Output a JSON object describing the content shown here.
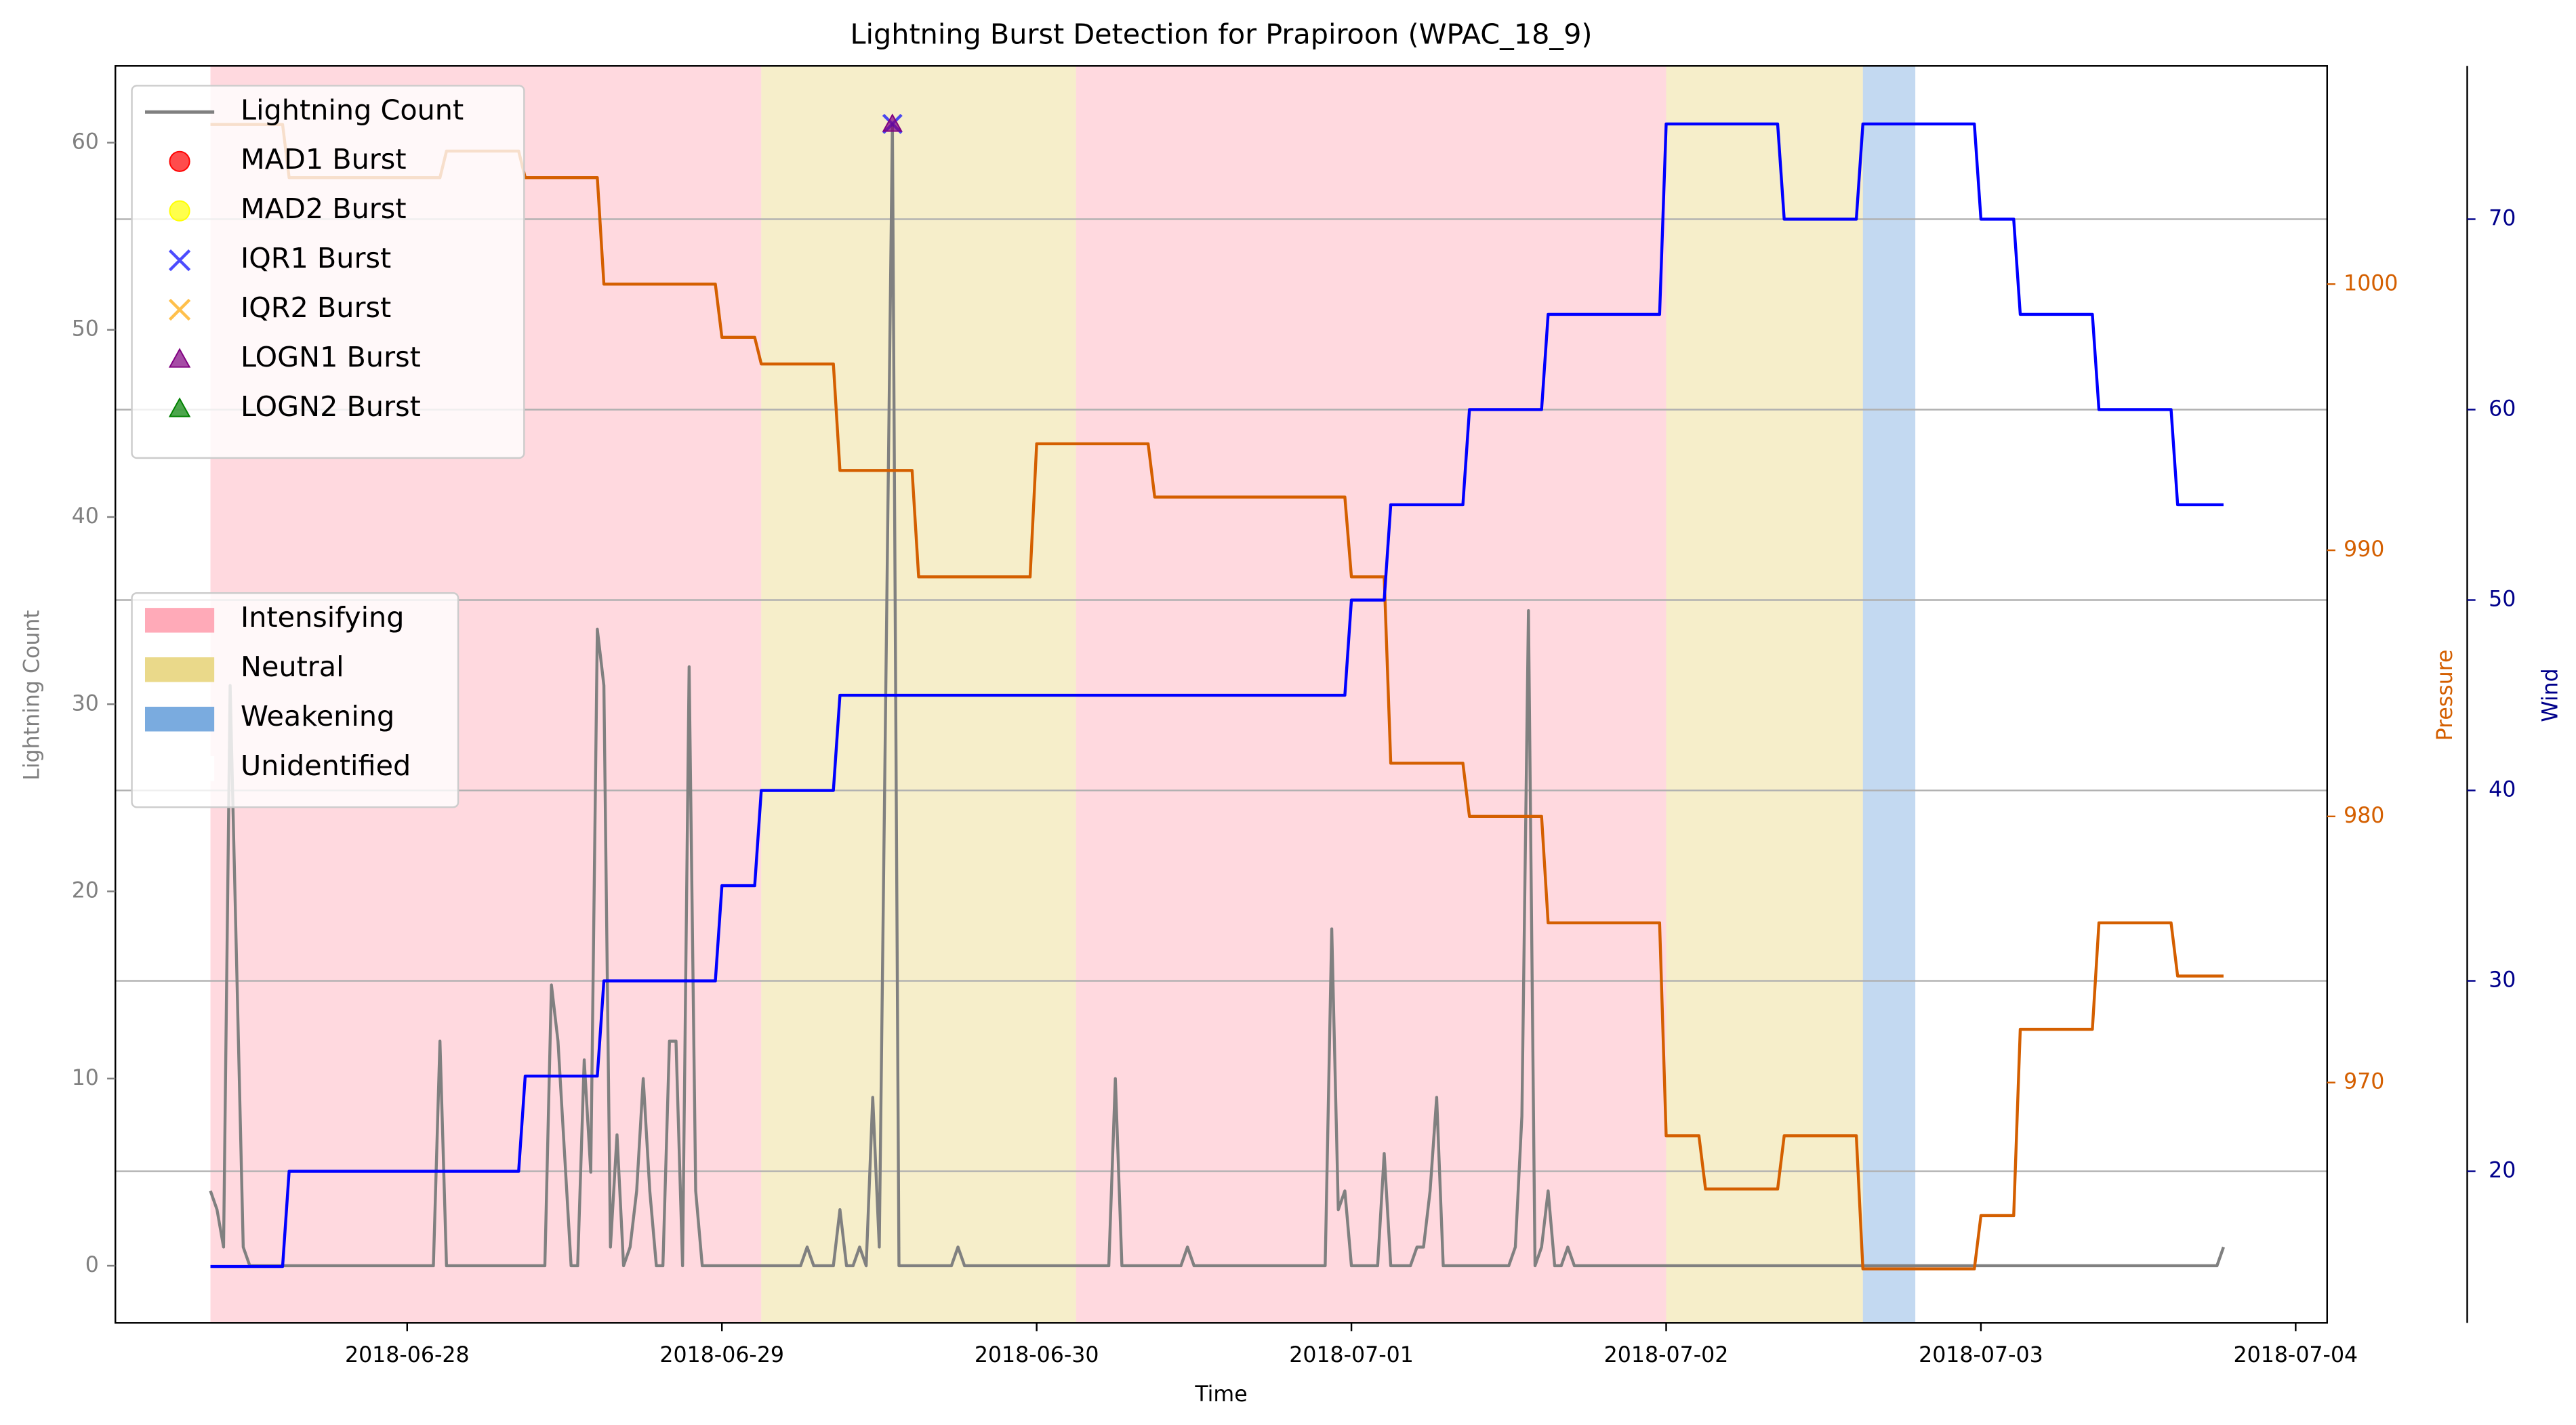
{
  "chart_data": {
    "type": "line",
    "title": "Lightning Burst Detection for Prapiroon (WPAC_18_9)",
    "xlabel": "Time",
    "ylabel": "Lightning Count",
    "y2label": "Pressure",
    "y3label": "Wind",
    "xlim": [
      "2018-06-27 01:45",
      "2018-07-04 02:24"
    ],
    "xticks": [
      "2018-06-28",
      "2018-06-29",
      "2018-06-30",
      "2018-07-01",
      "2018-07-02",
      "2018-07-03",
      "2018-07-04"
    ],
    "ylim": [
      -3.05,
      64.1
    ],
    "yticks": [
      0,
      10,
      20,
      30,
      40,
      50,
      60
    ],
    "y2lim": [
      960.97,
      1008.2
    ],
    "y2ticks": [
      970,
      980,
      990,
      1000
    ],
    "y3lim": [
      12.04,
      78.05
    ],
    "y3ticks": [
      20,
      30,
      40,
      50,
      60,
      70
    ],
    "grid": "y3",
    "series": [
      {
        "name": "Lightning Count",
        "color": "#808080",
        "x": [
          "2018-06-27 09:00",
          "2018-06-27 09:30",
          "2018-06-27 10:00",
          "2018-06-27 10:30",
          "2018-06-27 11:30",
          "2018-06-27 12:00",
          "2018-06-28 02:00",
          "2018-06-28 02:30",
          "2018-06-28 03:00",
          "2018-06-28 10:30",
          "2018-06-28 11:00",
          "2018-06-28 11:30",
          "2018-06-28 12:30",
          "2018-06-28 13:00",
          "2018-06-28 13:30",
          "2018-06-28 14:00",
          "2018-06-28 14:30",
          "2018-06-28 15:00",
          "2018-06-28 15:30",
          "2018-06-28 16:00",
          "2018-06-28 16:30",
          "2018-06-28 17:00",
          "2018-06-28 17:30",
          "2018-06-28 18:00",
          "2018-06-28 18:30",
          "2018-06-28 19:00",
          "2018-06-28 19:30",
          "2018-06-28 20:00",
          "2018-06-28 20:30",
          "2018-06-28 21:00",
          "2018-06-28 21:30",
          "2018-06-28 22:00",
          "2018-06-28 22:30",
          "2018-06-29 06:00",
          "2018-06-29 06:30",
          "2018-06-29 07:00",
          "2018-06-29 08:30",
          "2018-06-29 09:00",
          "2018-06-29 09:30",
          "2018-06-29 10:00",
          "2018-06-29 10:30",
          "2018-06-29 11:00",
          "2018-06-29 11:30",
          "2018-06-29 12:00",
          "2018-06-29 13:00",
          "2018-06-29 13:30",
          "2018-06-29 17:30",
          "2018-06-29 18:00",
          "2018-06-29 18:30",
          "2018-06-30 05:30",
          "2018-06-30 06:00",
          "2018-06-30 06:30",
          "2018-06-30 11:00",
          "2018-06-30 11:30",
          "2018-06-30 12:00",
          "2018-06-30 22:00",
          "2018-06-30 22:30",
          "2018-06-30 23:00",
          "2018-06-30 23:30",
          "2018-07-01 00:00",
          "2018-07-01 02:00",
          "2018-07-01 02:30",
          "2018-07-01 03:00",
          "2018-07-01 04:30",
          "2018-07-01 05:00",
          "2018-07-01 05:30",
          "2018-07-01 06:00",
          "2018-07-01 06:30",
          "2018-07-01 07:00",
          "2018-07-01 12:00",
          "2018-07-01 12:30",
          "2018-07-01 13:00",
          "2018-07-01 13:30",
          "2018-07-01 14:00",
          "2018-07-01 14:30",
          "2018-07-01 15:00",
          "2018-07-01 15:30",
          "2018-07-01 16:00",
          "2018-07-01 16:30",
          "2018-07-01 17:00",
          "2018-07-03 18:00",
          "2018-07-03 18:30"
        ],
        "values": [
          4,
          3,
          1,
          31,
          1,
          0,
          0,
          12,
          0,
          0,
          15,
          12,
          0,
          0,
          11,
          5,
          34,
          31,
          1,
          7,
          0,
          1,
          4,
          10,
          4,
          0,
          0,
          12,
          12,
          0,
          32,
          4,
          0,
          0,
          1,
          0,
          0,
          3,
          0,
          0,
          1,
          0,
          9,
          1,
          61,
          0,
          0,
          1,
          0,
          0,
          10,
          0,
          0,
          1,
          0,
          0,
          18,
          3,
          4,
          0,
          0,
          6,
          0,
          0,
          1,
          1,
          4,
          9,
          0,
          0,
          1,
          8,
          35,
          0,
          1,
          4,
          0,
          0,
          1,
          0,
          0,
          1
        ]
      },
      {
        "axis": "y2",
        "color": "#d45f00",
        "x": [
          "2018-06-27 09:00",
          "2018-06-27 14:30",
          "2018-06-27 15:00",
          "2018-06-28 02:30",
          "2018-06-28 03:00",
          "2018-06-28 08:30",
          "2018-06-28 09:00",
          "2018-06-28 14:30",
          "2018-06-28 15:00",
          "2018-06-28 23:30",
          "2018-06-29 00:00",
          "2018-06-29 02:30",
          "2018-06-29 03:00",
          "2018-06-29 08:30",
          "2018-06-29 09:00",
          "2018-06-29 14:30",
          "2018-06-29 15:00",
          "2018-06-29 23:30",
          "2018-06-30 00:00",
          "2018-06-30 08:30",
          "2018-06-30 09:00",
          "2018-06-30 23:30",
          "2018-07-01 00:00",
          "2018-07-01 02:30",
          "2018-07-01 03:00",
          "2018-07-01 08:30",
          "2018-07-01 09:00",
          "2018-07-01 14:30",
          "2018-07-01 15:00",
          "2018-07-01 23:30",
          "2018-07-02 00:00",
          "2018-07-02 02:30",
          "2018-07-02 03:00",
          "2018-07-02 08:30",
          "2018-07-02 09:00",
          "2018-07-02 14:30",
          "2018-07-02 15:00",
          "2018-07-02 23:30",
          "2018-07-03 00:00",
          "2018-07-03 02:30",
          "2018-07-03 03:00",
          "2018-07-03 08:30",
          "2018-07-03 09:00",
          "2018-07-03 14:30",
          "2018-07-03 15:00",
          "2018-07-03 18:30"
        ],
        "values": [
          1006,
          1006,
          1004,
          1004,
          1005,
          1005,
          1004,
          1004,
          1000,
          1000,
          998,
          998,
          997,
          997,
          993,
          993,
          989,
          989,
          994,
          994,
          992,
          992,
          989,
          989,
          982,
          982,
          980,
          980,
          976,
          976,
          968,
          968,
          966,
          966,
          968,
          968,
          963,
          963,
          965,
          965,
          972,
          972,
          976,
          976,
          974,
          974
        ]
      },
      {
        "axis": "y3",
        "color": "#0000ff",
        "x": [
          "2018-06-27 09:00",
          "2018-06-27 14:30",
          "2018-06-27 15:00",
          "2018-06-28 08:30",
          "2018-06-28 09:00",
          "2018-06-28 14:30",
          "2018-06-28 15:00",
          "2018-06-28 23:30",
          "2018-06-29 00:00",
          "2018-06-29 02:30",
          "2018-06-29 03:00",
          "2018-06-29 08:30",
          "2018-06-29 09:00",
          "2018-06-30 23:30",
          "2018-07-01 00:00",
          "2018-07-01 02:30",
          "2018-07-01 03:00",
          "2018-07-01 08:30",
          "2018-07-01 09:00",
          "2018-07-01 14:30",
          "2018-07-01 15:00",
          "2018-07-01 23:30",
          "2018-07-02 00:00",
          "2018-07-02 08:30",
          "2018-07-02 09:00",
          "2018-07-02 14:30",
          "2018-07-02 15:00",
          "2018-07-02 23:30",
          "2018-07-03 00:00",
          "2018-07-03 02:30",
          "2018-07-03 03:00",
          "2018-07-03 08:30",
          "2018-07-03 09:00",
          "2018-07-03 14:30",
          "2018-07-03 15:00",
          "2018-07-03 18:30"
        ],
        "values": [
          15,
          15,
          20,
          20,
          25,
          25,
          30,
          30,
          35,
          35,
          40,
          40,
          45,
          45,
          50,
          50,
          55,
          55,
          60,
          60,
          65,
          65,
          75,
          75,
          70,
          70,
          75,
          75,
          70,
          70,
          65,
          65,
          60,
          60,
          55,
          55
        ]
      }
    ],
    "bursts": [
      {
        "name": "MAD1 Burst",
        "color": "#ff0000",
        "marker": "o",
        "x": [],
        "values": []
      },
      {
        "name": "MAD2 Burst",
        "color": "#ffff00",
        "marker": "o",
        "x": [],
        "values": []
      },
      {
        "name": "IQR1 Burst",
        "color": "#0000ff",
        "marker": "x",
        "x": [
          "2018-06-29 13:00"
        ],
        "values": [
          61
        ]
      },
      {
        "name": "IQR2 Burst",
        "color": "#ffa500",
        "marker": "x",
        "x": [],
        "values": []
      },
      {
        "name": "LOGN1 Burst",
        "color": "#800080",
        "marker": "^",
        "x": [
          "2018-06-29 13:00"
        ],
        "values": [
          61
        ]
      },
      {
        "name": "LOGN2 Burst",
        "color": "#008000",
        "marker": "^",
        "x": [],
        "values": []
      }
    ],
    "phases": [
      {
        "name": "Intensifying",
        "color": "#ffaab8",
        "spans": [
          [
            "2018-06-27 09:00",
            "2018-06-29 03:00"
          ],
          [
            "2018-06-30 03:00",
            "2018-07-02 00:00"
          ]
        ]
      },
      {
        "name": "Neutral",
        "color": "#ead98a",
        "spans": [
          [
            "2018-06-29 03:00",
            "2018-06-30 03:00"
          ],
          [
            "2018-07-02 00:00",
            "2018-07-02 15:00"
          ]
        ]
      },
      {
        "name": "Weakening",
        "color": "#7aabdf",
        "spans": [
          [
            "2018-07-02 15:00",
            "2018-07-02 19:00"
          ]
        ]
      },
      {
        "name": "Unidentified",
        "color": "#ffffff",
        "spans": [
          [
            "2018-07-02 19:00",
            "2018-07-03 18:30"
          ]
        ]
      }
    ]
  }
}
